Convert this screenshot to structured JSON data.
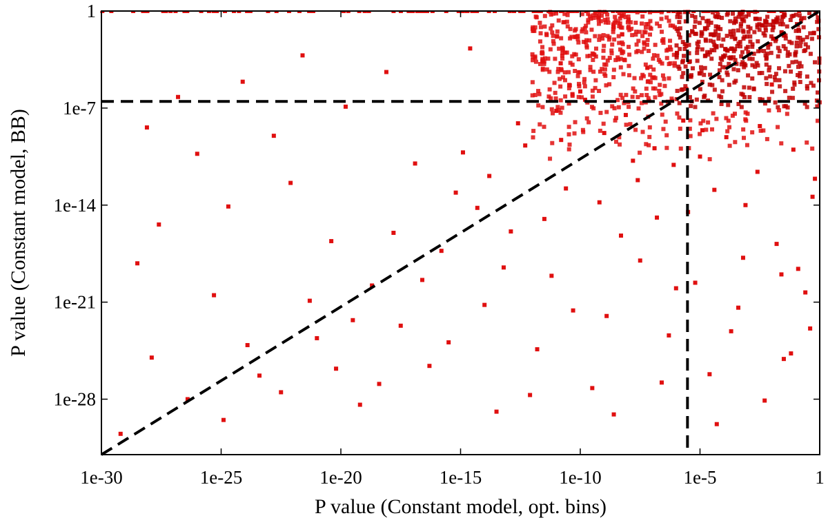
{
  "chart_data": {
    "type": "scatter",
    "title": "",
    "xlabel": "P value (Constant model, opt. bins)",
    "ylabel": "P value (Constant model, BB)",
    "x_scale": "log",
    "y_scale": "log",
    "xlim": [
      1e-30,
      1
    ],
    "ylim": [
      1e-32,
      1
    ],
    "x_ticks": [
      {
        "value": 1e-30,
        "label": "1e-30"
      },
      {
        "value": 1e-25,
        "label": "1e-25"
      },
      {
        "value": 1e-20,
        "label": "1e-20"
      },
      {
        "value": 1e-15,
        "label": "1e-15"
      },
      {
        "value": 1e-10,
        "label": "1e-10"
      },
      {
        "value": 1e-05,
        "label": "1e-5"
      },
      {
        "value": 1,
        "label": "1"
      }
    ],
    "y_ticks": [
      {
        "value": 1,
        "label": "1"
      },
      {
        "value": 1e-07,
        "label": "1e-7"
      },
      {
        "value": 1e-14,
        "label": "1e-14"
      },
      {
        "value": 1e-21,
        "label": "1e-21"
      },
      {
        "value": 1e-28,
        "label": "1e-28"
      }
    ],
    "reference_lines": [
      {
        "name": "threshold-x",
        "orientation": "vertical",
        "value": 3e-06
      },
      {
        "name": "threshold-y",
        "orientation": "horizontal",
        "value": 3e-07
      },
      {
        "name": "equality-line",
        "orientation": "diagonal",
        "from": [
          1e-30,
          1e-32
        ],
        "to": [
          1,
          1
        ]
      }
    ],
    "series": [
      {
        "name": "sources",
        "color": "#e01010",
        "dense_color": "#c00000",
        "points_log10": [
          [
            -29.2,
            -30.5
          ],
          [
            -28.5,
            -18.2
          ],
          [
            -28.1,
            -8.4
          ],
          [
            -27.6,
            -15.4
          ],
          [
            -26.8,
            -6.2
          ],
          [
            -26.0,
            -10.3
          ],
          [
            -25.3,
            -20.5
          ],
          [
            -24.7,
            -14.1
          ],
          [
            -24.1,
            -5.1
          ],
          [
            -23.4,
            -26.3
          ],
          [
            -22.8,
            -9.0
          ],
          [
            -22.1,
            -12.4
          ],
          [
            -21.6,
            -3.2
          ],
          [
            -21.0,
            -23.6
          ],
          [
            -20.4,
            -16.6
          ],
          [
            -19.8,
            -6.9
          ],
          [
            -19.2,
            -28.4
          ],
          [
            -18.7,
            -19.8
          ],
          [
            -18.1,
            -4.4
          ],
          [
            -17.5,
            -22.7
          ],
          [
            -16.9,
            -11.0
          ],
          [
            -16.3,
            -25.6
          ],
          [
            -15.8,
            -17.3
          ],
          [
            -15.2,
            -13.1
          ],
          [
            -14.6,
            -2.7
          ],
          [
            -14.0,
            -21.2
          ],
          [
            -13.5,
            -28.9
          ],
          [
            -12.9,
            -15.9
          ],
          [
            -12.3,
            -9.7
          ],
          [
            -11.8,
            -24.4
          ],
          [
            -11.2,
            -19.1
          ],
          [
            -10.6,
            -12.8
          ],
          [
            -10.0,
            -5.8
          ],
          [
            -9.5,
            -27.2
          ],
          [
            -8.9,
            -22.0
          ],
          [
            -8.3,
            -16.2
          ],
          [
            -7.8,
            -10.8
          ],
          [
            -7.2,
            -4.1
          ],
          [
            -6.6,
            -26.8
          ],
          [
            -6.0,
            -20.0
          ],
          [
            -5.5,
            -14.5
          ],
          [
            -4.9,
            -8.6
          ],
          [
            -4.3,
            -29.8
          ],
          [
            -3.7,
            -23.1
          ],
          [
            -3.2,
            -17.8
          ],
          [
            -2.6,
            -11.6
          ],
          [
            -2.0,
            -5.3
          ],
          [
            -1.5,
            -25.1
          ],
          [
            -0.9,
            -18.6
          ],
          [
            -0.3,
            -13.4
          ],
          [
            -27.9,
            -25.0
          ],
          [
            -26.4,
            -28.0
          ],
          [
            -24.9,
            -29.5
          ],
          [
            -23.9,
            -24.1
          ],
          [
            -22.5,
            -27.5
          ],
          [
            -21.3,
            -20.9
          ],
          [
            -20.2,
            -25.8
          ],
          [
            -19.5,
            -22.3
          ],
          [
            -18.4,
            -26.9
          ],
          [
            -17.8,
            -16.0
          ],
          [
            -16.6,
            -19.4
          ],
          [
            -15.5,
            -23.9
          ],
          [
            -14.3,
            -14.2
          ],
          [
            -13.2,
            -18.5
          ],
          [
            -12.1,
            -27.7
          ],
          [
            -11.5,
            -15.0
          ],
          [
            -10.3,
            -21.6
          ],
          [
            -9.2,
            -13.8
          ],
          [
            -8.6,
            -29.1
          ],
          [
            -7.5,
            -18.0
          ],
          [
            -6.8,
            -14.9
          ],
          [
            -6.3,
            -23.4
          ],
          [
            -5.2,
            -19.6
          ],
          [
            -4.6,
            -26.2
          ],
          [
            -3.4,
            -21.4
          ],
          [
            -2.3,
            -28.1
          ],
          [
            -1.2,
            -24.7
          ],
          [
            -0.6,
            -20.3
          ],
          [
            -14.9,
            -10.2
          ],
          [
            -13.8,
            -11.9
          ],
          [
            -12.6,
            -8.1
          ],
          [
            -11.0,
            -7.2
          ],
          [
            -10.8,
            -9.3
          ],
          [
            -9.8,
            -6.4
          ],
          [
            -9.0,
            -8.8
          ],
          [
            -8.1,
            -7.5
          ],
          [
            -7.6,
            -12.2
          ],
          [
            -6.9,
            -9.9
          ],
          [
            -6.1,
            -11.1
          ],
          [
            -5.7,
            -7.9
          ],
          [
            -5.0,
            -10.5
          ],
          [
            -4.4,
            -12.9
          ],
          [
            -3.9,
            -9.1
          ],
          [
            -3.1,
            -14.0
          ],
          [
            -2.5,
            -8.3
          ],
          [
            -1.8,
            -16.8
          ],
          [
            -1.1,
            -10.0
          ],
          [
            -0.4,
            -22.9
          ],
          [
            -0.2,
            -12.1
          ],
          [
            -1.6,
            -19.0
          ]
        ]
      }
    ]
  }
}
